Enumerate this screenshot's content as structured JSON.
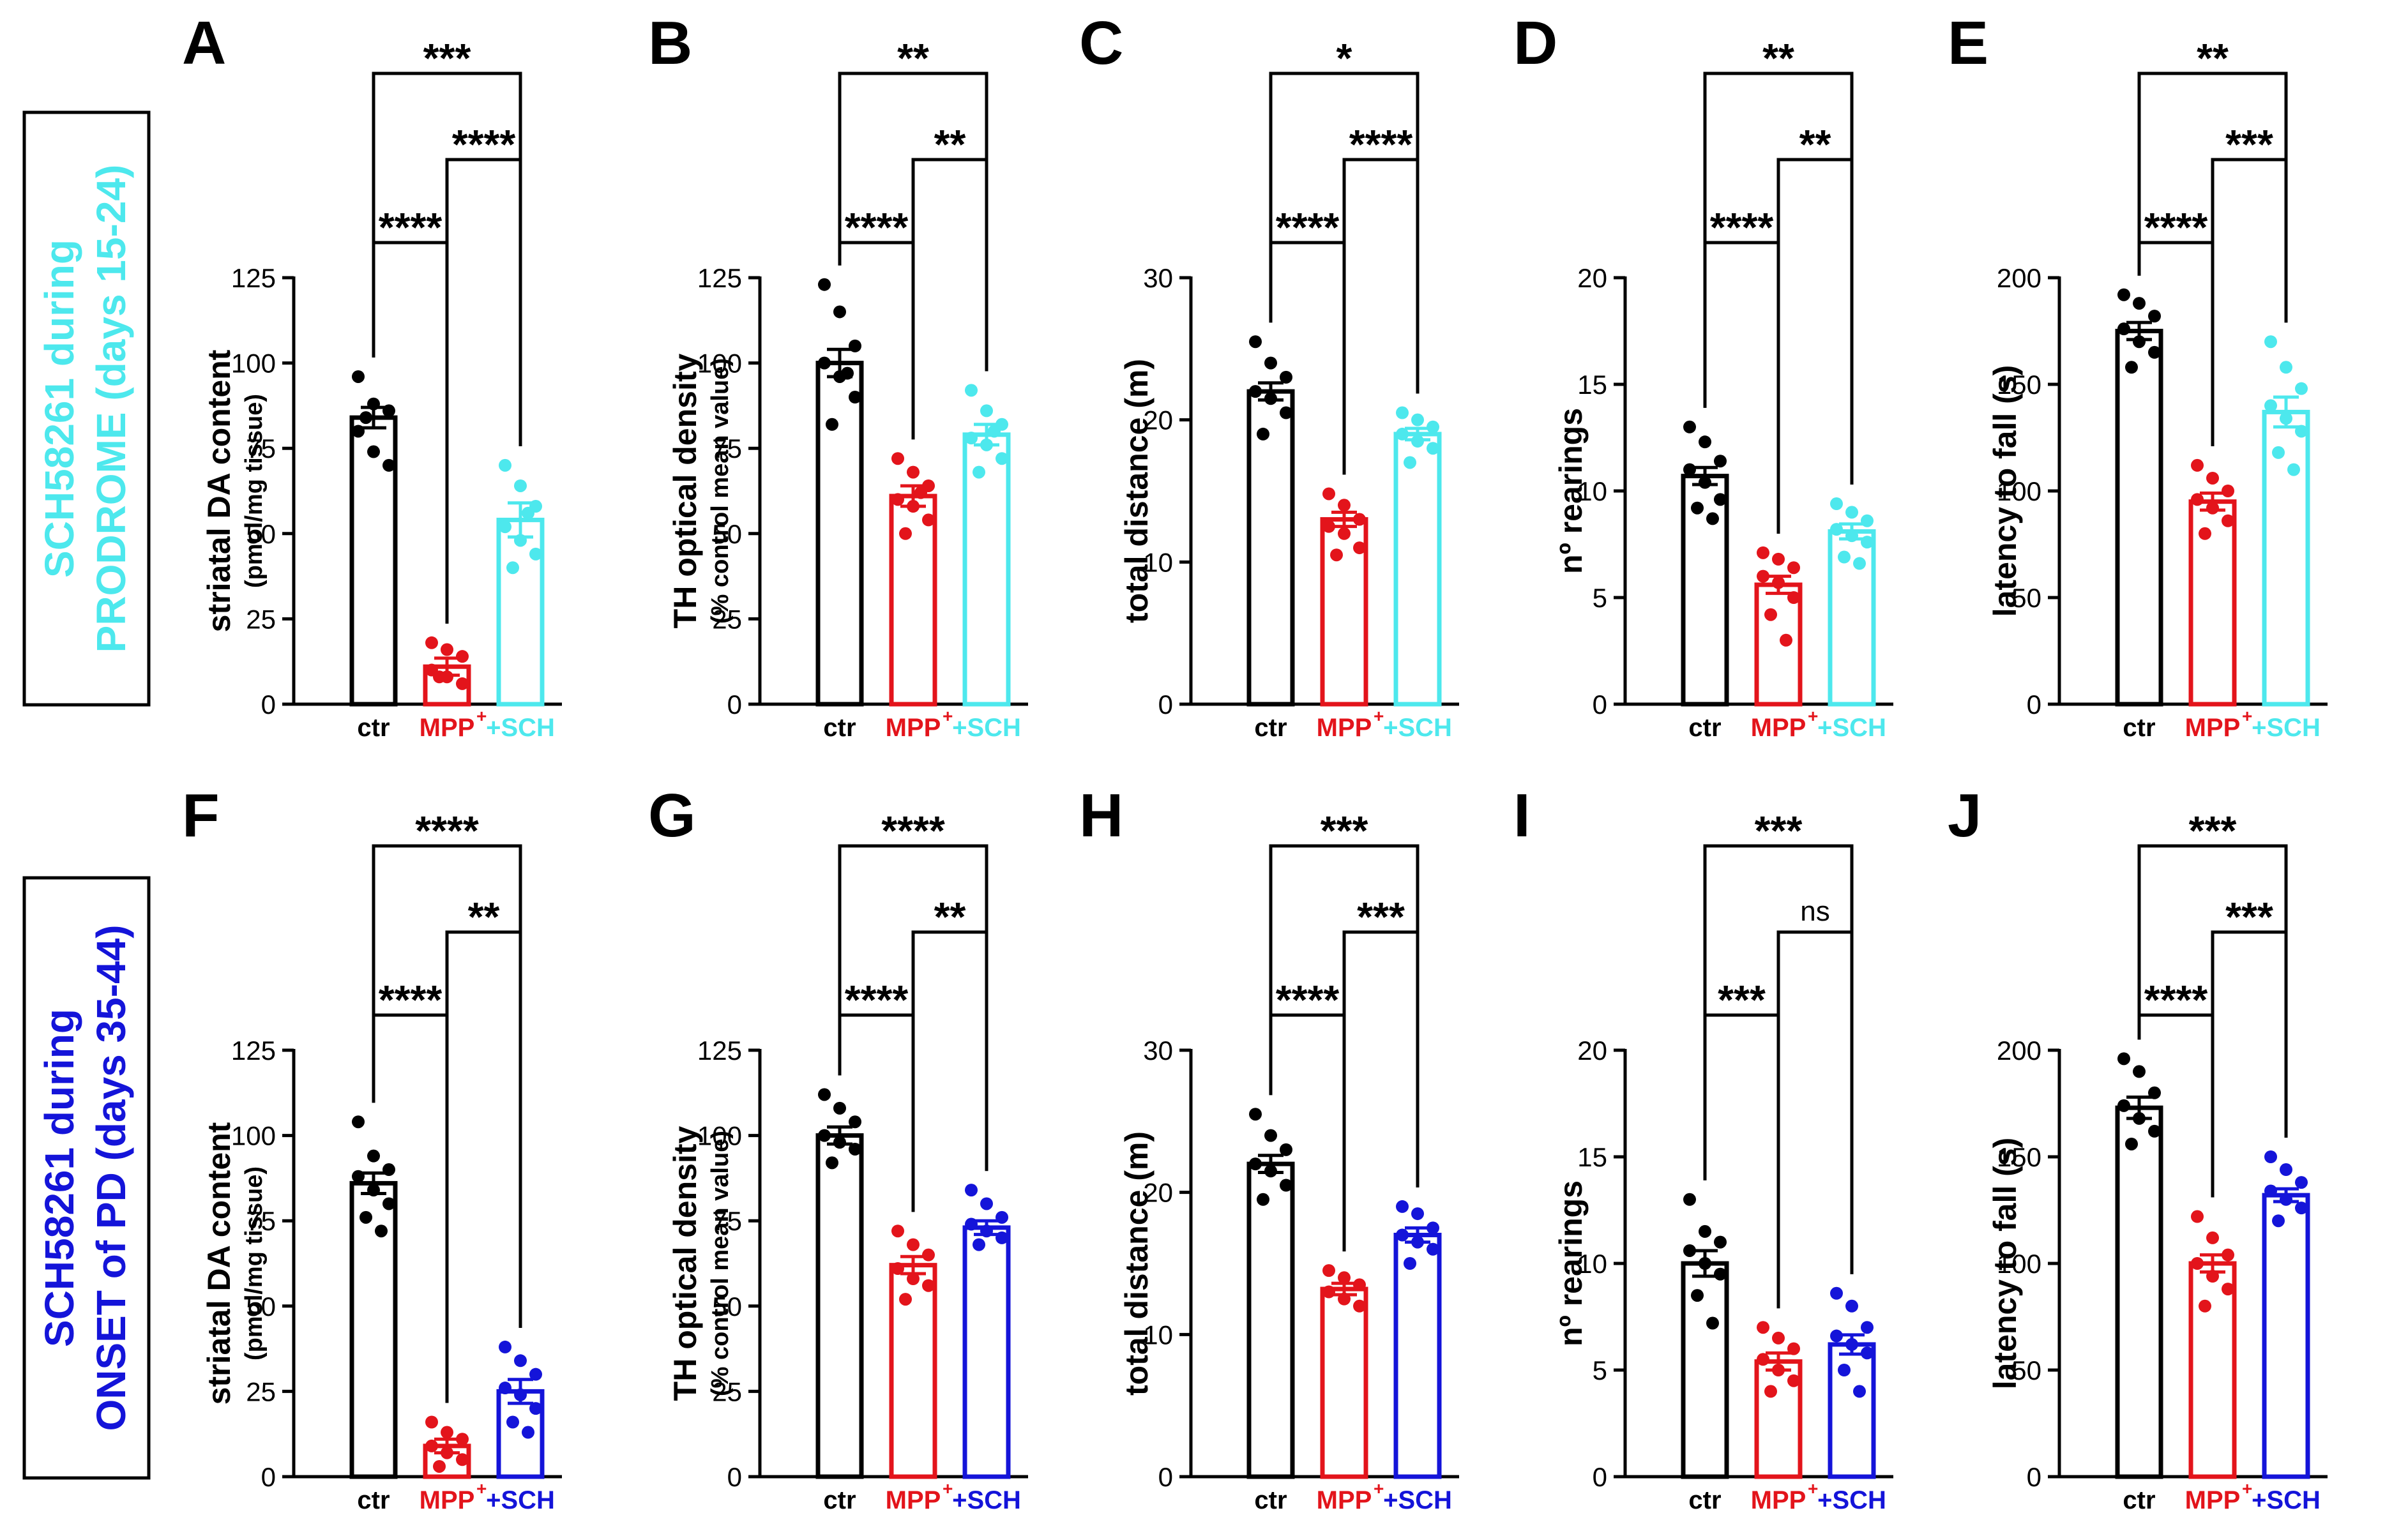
{
  "colors": {
    "ctr": "#000000",
    "mpp": "#e3141b",
    "sch_prodrome": "#4de8ed",
    "sch_onset": "#1414d9"
  },
  "rows": [
    {
      "label_line1": "SCH58261 during",
      "label_line2": "PRODROME (days 15-24)",
      "color_key": "sch_prodrome"
    },
    {
      "label_line1": "SCH58261 during",
      "label_line2": "ONSET of PD (days 35-44)",
      "color_key": "sch_onset"
    }
  ],
  "chart_data": [
    {
      "panel": "A",
      "type": "bar",
      "ylabel": "striatal DA content",
      "ylabel2": "(pmol/mg tissue)",
      "ylim": [
        0,
        125
      ],
      "ticks": [
        0,
        25,
        50,
        75,
        100,
        125
      ],
      "categories": [
        "ctr",
        "MPP",
        "+SCH"
      ],
      "values": [
        84,
        11,
        54
      ],
      "sem": [
        3,
        2.5,
        5
      ],
      "points": [
        [
          96,
          88,
          86,
          80,
          74,
          70,
          84
        ],
        [
          18,
          16,
          14,
          10,
          8,
          6,
          8
        ],
        [
          70,
          64,
          58,
          52,
          48,
          44,
          40,
          56
        ]
      ],
      "comparisons": [
        {
          "from": 0,
          "to": 1,
          "label": "****"
        },
        {
          "from": 1,
          "to": 2,
          "label": "****"
        },
        {
          "from": 0,
          "to": 2,
          "label": "***"
        }
      ]
    },
    {
      "panel": "B",
      "type": "bar",
      "ylabel": "TH optical density",
      "ylabel2": "(% control mean value)",
      "ylim": [
        0,
        125
      ],
      "ticks": [
        0,
        25,
        50,
        75,
        100,
        125
      ],
      "categories": [
        "ctr",
        "MPP",
        "+SCH"
      ],
      "values": [
        100,
        61,
        79
      ],
      "sem": [
        4,
        3,
        3
      ],
      "points": [
        [
          123,
          115,
          105,
          100,
          96,
          90,
          82,
          97
        ],
        [
          72,
          68,
          64,
          60,
          58,
          54,
          50,
          62
        ],
        [
          92,
          86,
          82,
          78,
          76,
          72,
          68,
          80
        ]
      ],
      "comparisons": [
        {
          "from": 0,
          "to": 1,
          "label": "****"
        },
        {
          "from": 1,
          "to": 2,
          "label": "**"
        },
        {
          "from": 0,
          "to": 2,
          "label": "**"
        }
      ]
    },
    {
      "panel": "C",
      "type": "bar",
      "ylabel": "total distance (m)",
      "ylim": [
        0,
        30
      ],
      "ticks": [
        0,
        10,
        20,
        30
      ],
      "categories": [
        "ctr",
        "MPP",
        "+SCH"
      ],
      "values": [
        22,
        13,
        19
      ],
      "sem": [
        0.6,
        0.5,
        0.4
      ],
      "points": [
        [
          25.5,
          24,
          23,
          22,
          21.5,
          20.5,
          19
        ],
        [
          14.8,
          14,
          13,
          12.5,
          12,
          11,
          10.5
        ],
        [
          20.5,
          20,
          19.5,
          19,
          18.5,
          18,
          17
        ]
      ],
      "comparisons": [
        {
          "from": 0,
          "to": 1,
          "label": "****"
        },
        {
          "from": 1,
          "to": 2,
          "label": "****"
        },
        {
          "from": 0,
          "to": 2,
          "label": "*"
        }
      ]
    },
    {
      "panel": "D",
      "type": "bar",
      "ylabel": "nº rearings",
      "ylim": [
        0,
        20
      ],
      "ticks": [
        0,
        5,
        10,
        15,
        20
      ],
      "categories": [
        "ctr",
        "MPP",
        "+SCH"
      ],
      "values": [
        10.7,
        5.6,
        8.1
      ],
      "sem": [
        0.4,
        0.4,
        0.35
      ],
      "points": [
        [
          13,
          12.3,
          11.4,
          11,
          10.4,
          9.6,
          9.2,
          8.7
        ],
        [
          7.1,
          6.8,
          6.4,
          6,
          5.7,
          5,
          4.2,
          3
        ],
        [
          9.4,
          9,
          8.6,
          8.2,
          7.9,
          7.6,
          6.9,
          6.6
        ]
      ],
      "comparisons": [
        {
          "from": 0,
          "to": 1,
          "label": "****"
        },
        {
          "from": 1,
          "to": 2,
          "label": "**"
        },
        {
          "from": 0,
          "to": 2,
          "label": "**"
        }
      ]
    },
    {
      "panel": "E",
      "type": "bar",
      "ylabel": "latency to fall (s)",
      "ylim": [
        0,
        200
      ],
      "ticks": [
        0,
        50,
        100,
        150,
        200
      ],
      "categories": [
        "ctr",
        "MPP",
        "+SCH"
      ],
      "values": [
        175,
        95,
        137
      ],
      "sem": [
        4,
        4,
        7
      ],
      "points": [
        [
          192,
          188,
          182,
          176,
          170,
          165,
          158
        ],
        [
          112,
          106,
          100,
          96,
          92,
          86,
          80
        ],
        [
          170,
          158,
          148,
          140,
          134,
          128,
          118,
          110
        ]
      ],
      "comparisons": [
        {
          "from": 0,
          "to": 1,
          "label": "****"
        },
        {
          "from": 1,
          "to": 2,
          "label": "***"
        },
        {
          "from": 0,
          "to": 2,
          "label": "**"
        }
      ]
    },
    {
      "panel": "F",
      "type": "bar",
      "ylabel": "striatal DA content",
      "ylabel2": "(pmol/mg tissue)",
      "ylim": [
        0,
        125
      ],
      "ticks": [
        0,
        25,
        50,
        75,
        100,
        125
      ],
      "categories": [
        "ctr",
        "MPP",
        "+SCH"
      ],
      "values": [
        86,
        9,
        25
      ],
      "sem": [
        3,
        2,
        3.5
      ],
      "points": [
        [
          104,
          94,
          90,
          88,
          84,
          80,
          76,
          72
        ],
        [
          16,
          13,
          11,
          9,
          7,
          5,
          3
        ],
        [
          38,
          34,
          30,
          26,
          24,
          20,
          16,
          13
        ]
      ],
      "comparisons": [
        {
          "from": 0,
          "to": 1,
          "label": "****"
        },
        {
          "from": 1,
          "to": 2,
          "label": "**"
        },
        {
          "from": 0,
          "to": 2,
          "label": "****"
        }
      ]
    },
    {
      "panel": "G",
      "type": "bar",
      "ylabel": "TH optical density",
      "ylabel2": "(% control mean value)",
      "ylim": [
        0,
        125
      ],
      "ticks": [
        0,
        25,
        50,
        75,
        100,
        125
      ],
      "categories": [
        "ctr",
        "MPP",
        "+SCH"
      ],
      "values": [
        100,
        62,
        73
      ],
      "sem": [
        2.5,
        2.5,
        2
      ],
      "points": [
        [
          112,
          108,
          104,
          100,
          98,
          96,
          92
        ],
        [
          72,
          68,
          65,
          61,
          58,
          56,
          52
        ],
        [
          84,
          80,
          76,
          74,
          72,
          70,
          68
        ]
      ],
      "comparisons": [
        {
          "from": 0,
          "to": 1,
          "label": "****"
        },
        {
          "from": 1,
          "to": 2,
          "label": "**"
        },
        {
          "from": 0,
          "to": 2,
          "label": "****"
        }
      ]
    },
    {
      "panel": "H",
      "type": "bar",
      "ylabel": "total distance (m)",
      "ylim": [
        0,
        30
      ],
      "ticks": [
        0,
        10,
        20,
        30
      ],
      "categories": [
        "ctr",
        "MPP",
        "+SCH"
      ],
      "values": [
        22,
        13.2,
        17
      ],
      "sem": [
        0.6,
        0.4,
        0.5
      ],
      "points": [
        [
          25.5,
          24,
          23,
          22,
          21.5,
          20.5,
          19.5
        ],
        [
          14.5,
          14,
          13.5,
          13,
          12.5,
          12
        ],
        [
          19,
          18.5,
          17.5,
          17,
          16.5,
          16,
          15
        ]
      ],
      "comparisons": [
        {
          "from": 0,
          "to": 1,
          "label": "****"
        },
        {
          "from": 1,
          "to": 2,
          "label": "***"
        },
        {
          "from": 0,
          "to": 2,
          "label": "***"
        }
      ]
    },
    {
      "panel": "I",
      "type": "bar",
      "ylabel": "nº rearings",
      "ylim": [
        0,
        20
      ],
      "ticks": [
        0,
        5,
        10,
        15,
        20
      ],
      "categories": [
        "ctr",
        "MPP",
        "+SCH"
      ],
      "values": [
        10,
        5.4,
        6.2
      ],
      "sem": [
        0.6,
        0.4,
        0.45
      ],
      "points": [
        [
          13,
          11.5,
          11,
          10.6,
          10,
          9.5,
          8.5,
          7.2
        ],
        [
          7,
          6.5,
          6,
          5.5,
          5,
          4.5,
          4
        ],
        [
          8.6,
          8,
          7,
          6.6,
          6.2,
          5.8,
          5,
          4
        ]
      ],
      "comparisons": [
        {
          "from": 0,
          "to": 1,
          "label": "***"
        },
        {
          "from": 1,
          "to": 2,
          "label": "ns"
        },
        {
          "from": 0,
          "to": 2,
          "label": "***"
        }
      ]
    },
    {
      "panel": "J",
      "type": "bar",
      "ylabel": "latency to fall (s)",
      "ylim": [
        0,
        200
      ],
      "ticks": [
        0,
        50,
        100,
        150,
        200
      ],
      "categories": [
        "ctr",
        "MPP",
        "+SCH"
      ],
      "values": [
        173,
        100,
        132
      ],
      "sem": [
        5,
        4,
        3
      ],
      "points": [
        [
          196,
          190,
          180,
          174,
          168,
          162,
          156
        ],
        [
          122,
          112,
          104,
          100,
          94,
          88,
          80
        ],
        [
          150,
          144,
          138,
          134,
          130,
          126,
          120
        ]
      ],
      "comparisons": [
        {
          "from": 0,
          "to": 1,
          "label": "****"
        },
        {
          "from": 1,
          "to": 2,
          "label": "***"
        },
        {
          "from": 0,
          "to": 2,
          "label": "***"
        }
      ]
    }
  ]
}
